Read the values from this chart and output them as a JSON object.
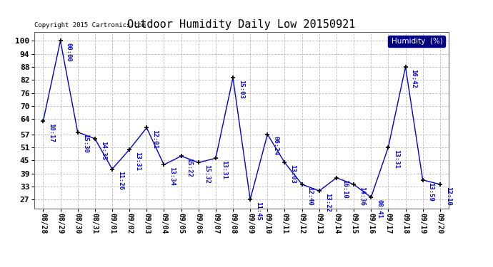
{
  "title": "Outdoor Humidity Daily Low 20150921",
  "copyright": "Copyright 2015 Cartronics.com",
  "legend_label": "Humidity  (%)",
  "x_labels": [
    "08/28",
    "08/29",
    "08/30",
    "08/31",
    "09/01",
    "09/02",
    "09/03",
    "09/04",
    "09/05",
    "09/06",
    "09/07",
    "09/08",
    "09/09",
    "09/10",
    "09/11",
    "09/12",
    "09/13",
    "09/14",
    "09/15",
    "09/16",
    "09/17",
    "09/18",
    "09/19",
    "09/20"
  ],
  "y_values": [
    63,
    100,
    58,
    55,
    41,
    50,
    60,
    43,
    47,
    44,
    46,
    83,
    27,
    57,
    44,
    34,
    31,
    37,
    34,
    28,
    51,
    88,
    36,
    34
  ],
  "point_labels": [
    "10:17",
    "00:00",
    "15:30",
    "14:35",
    "11:26",
    "13:31",
    "12:01",
    "13:34",
    "15:22",
    "15:32",
    "13:31",
    "15:03",
    "11:45",
    "06:24",
    "13:03",
    "12:40",
    "13:22",
    "16:10",
    "14:36",
    "08:41",
    "13:31",
    "16:42",
    "13:59",
    "12:10"
  ],
  "line_color": "#0000cc",
  "marker_color": "#000000",
  "bg_color": "#ffffff",
  "grid_color": "#bbbbbb",
  "yticks": [
    27,
    33,
    39,
    45,
    51,
    57,
    64,
    70,
    76,
    82,
    88,
    94,
    100
  ],
  "ylim": [
    23,
    104
  ],
  "title_fontsize": 11,
  "label_fontsize": 6.5
}
